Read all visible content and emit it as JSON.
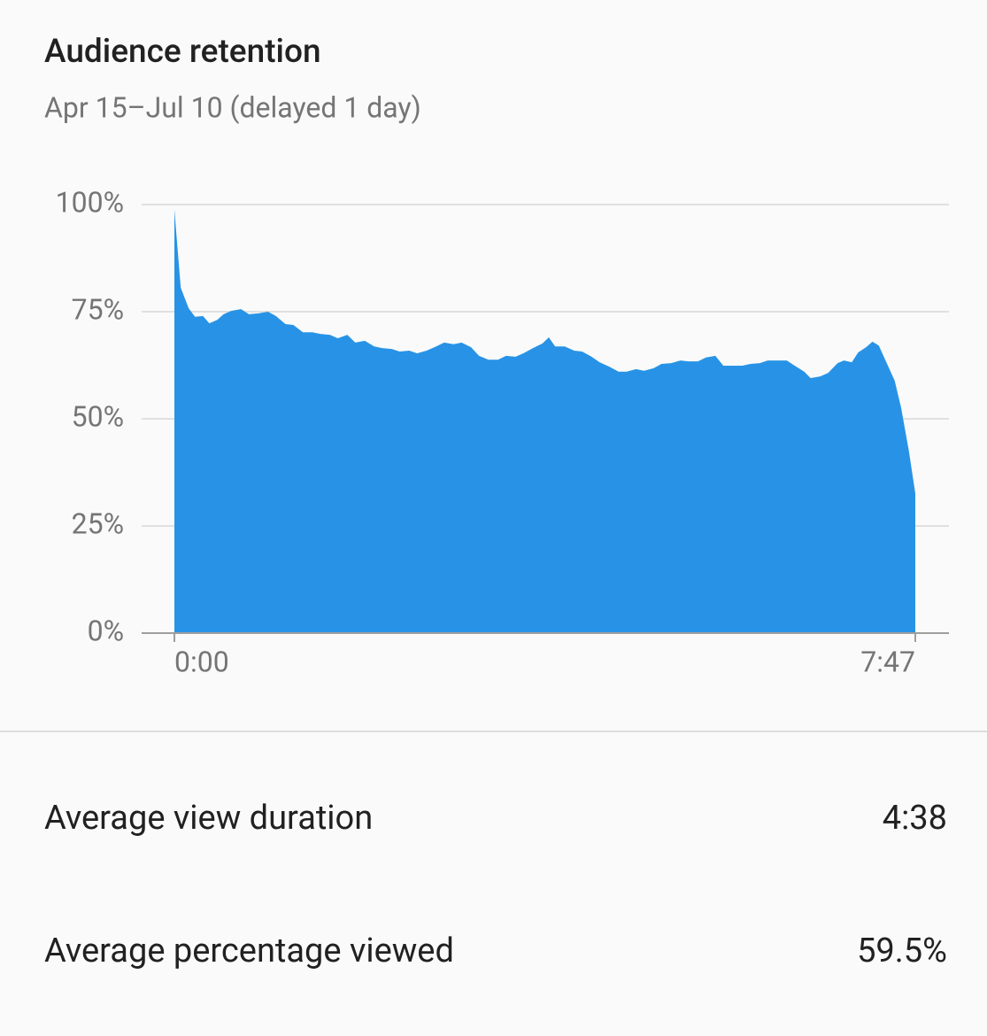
{
  "chart_data": {
    "type": "area",
    "title": "Audience retention",
    "subtitle": "Apr 15–Jul 10 (delayed 1 day)",
    "x": [
      0,
      4,
      9,
      13,
      18,
      22,
      27,
      31,
      36,
      42,
      47,
      53,
      59,
      64,
      70,
      75,
      81,
      87,
      92,
      98,
      103,
      109,
      114,
      120,
      126,
      131,
      137,
      142,
      148,
      153,
      159,
      165,
      170,
      176,
      181,
      187,
      192,
      198,
      204,
      209,
      215,
      220,
      226,
      232,
      236,
      240,
      246,
      252,
      257,
      263,
      268,
      274,
      280,
      285,
      291,
      296,
      302,
      307,
      313,
      319,
      324,
      330,
      335,
      341,
      346,
      352,
      358,
      363,
      369,
      374,
      380,
      386,
      391,
      397,
      401,
      407,
      412,
      418,
      422,
      427,
      431,
      436,
      440,
      444,
      449,
      454,
      458,
      463,
      467
    ],
    "values": [
      98.8,
      80.6,
      75.8,
      73.8,
      74.0,
      72.3,
      73.1,
      74.4,
      75.2,
      75.6,
      74.4,
      74.6,
      75.0,
      74.0,
      72.1,
      71.9,
      70.2,
      70.2,
      69.8,
      69.6,
      68.8,
      69.6,
      67.8,
      68.2,
      66.9,
      66.5,
      66.3,
      65.7,
      65.9,
      65.3,
      65.9,
      66.9,
      67.8,
      67.4,
      67.8,
      66.7,
      64.7,
      63.8,
      63.8,
      64.7,
      64.5,
      65.3,
      66.5,
      67.6,
      69.0,
      66.9,
      66.9,
      65.9,
      65.7,
      64.5,
      63.2,
      62.2,
      61.0,
      61.0,
      61.6,
      61.2,
      61.8,
      62.8,
      63.0,
      63.6,
      63.4,
      63.4,
      64.3,
      64.7,
      62.4,
      62.4,
      62.4,
      62.8,
      63.0,
      63.6,
      63.6,
      63.6,
      62.4,
      61.0,
      59.5,
      59.9,
      60.7,
      63.0,
      63.6,
      63.2,
      65.5,
      66.7,
      68.0,
      67.1,
      63.0,
      58.9,
      52.7,
      42.4,
      32.6
    ],
    "color": "#2893e6",
    "xlim": [
      0,
      467
    ],
    "xticks": [
      {
        "value": 0,
        "label": "0:00"
      },
      {
        "value": 467,
        "label": "7:47"
      }
    ],
    "ylim": [
      0,
      100
    ],
    "yticks": [
      {
        "value": 0,
        "label": "0%"
      },
      {
        "value": 25,
        "label": "25%"
      },
      {
        "value": 50,
        "label": "50%"
      },
      {
        "value": 75,
        "label": "75%"
      },
      {
        "value": 100,
        "label": "100%"
      }
    ],
    "grid": true
  },
  "stats": [
    {
      "label": "Average view duration",
      "value": "4:38"
    },
    {
      "label": "Average percentage viewed",
      "value": "59.5%"
    }
  ]
}
